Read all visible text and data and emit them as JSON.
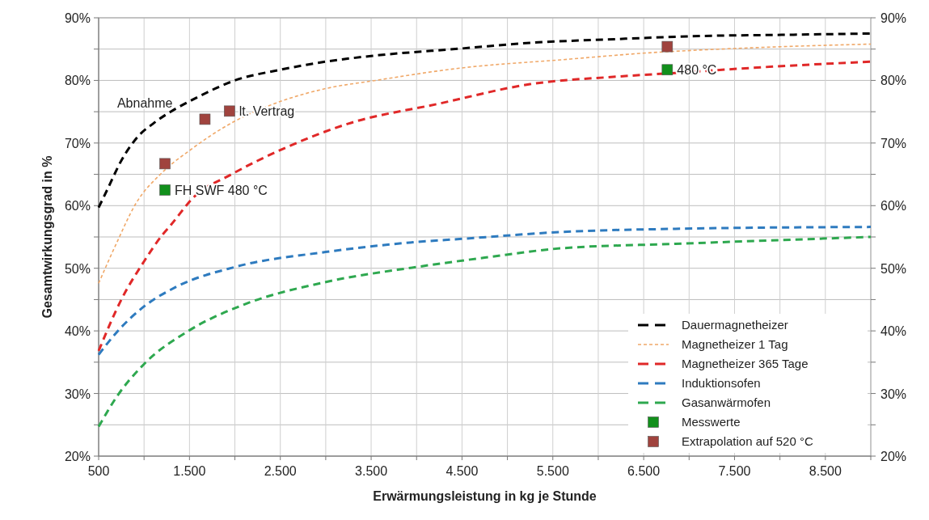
{
  "chart_data": {
    "type": "line",
    "xlabel": "Erwärmungsleistung in kg je Stunde",
    "ylabel": "Gesamtwirkungsgrad in %",
    "xlim": [
      500,
      9000
    ],
    "xticks": [
      500,
      {
        "value": 1000,
        "label": null
      },
      {
        "value": 1500,
        "label": "1.500"
      },
      {
        "value": 2000,
        "label": null
      },
      {
        "value": 2500,
        "label": "2.500"
      },
      {
        "value": 3000,
        "label": null
      },
      {
        "value": 3500,
        "label": "3.500"
      },
      {
        "value": 4000,
        "label": null
      },
      {
        "value": 4500,
        "label": "4.500"
      },
      {
        "value": 5000,
        "label": null
      },
      {
        "value": 5500,
        "label": "5.500"
      },
      {
        "value": 6000,
        "label": null
      },
      {
        "value": 6500,
        "label": "6.500"
      },
      {
        "value": 7000,
        "label": null
      },
      {
        "value": 7500,
        "label": "7.500"
      },
      {
        "value": 8000,
        "label": null
      },
      {
        "value": 8500,
        "label": "8.500"
      },
      {
        "value": 9000,
        "label": null
      }
    ],
    "ylim": [
      20,
      90
    ],
    "yticks": [
      {
        "value": 20,
        "label": "20%"
      },
      {
        "value": 25,
        "label": null
      },
      {
        "value": 30,
        "label": "30%"
      },
      {
        "value": 35,
        "label": null
      },
      {
        "value": 40,
        "label": "40%"
      },
      {
        "value": 45,
        "label": null
      },
      {
        "value": 50,
        "label": "50%"
      },
      {
        "value": 55,
        "label": null
      },
      {
        "value": 60,
        "label": "60%"
      },
      {
        "value": 65,
        "label": null
      },
      {
        "value": 70,
        "label": "70%"
      },
      {
        "value": 75,
        "label": null
      },
      {
        "value": 80,
        "label": "80%"
      },
      {
        "value": 85,
        "label": null
      },
      {
        "value": 90,
        "label": "90%"
      }
    ],
    "y2lim": [
      20,
      90
    ],
    "y2ticks": [
      {
        "value": 20,
        "label": "20%"
      },
      {
        "value": 25,
        "label": null
      },
      {
        "value": 30,
        "label": "30%"
      },
      {
        "value": 35,
        "label": null
      },
      {
        "value": 40,
        "label": "40%"
      },
      {
        "value": 45,
        "label": null
      },
      {
        "value": 50,
        "label": "50%"
      },
      {
        "value": 55,
        "label": null
      },
      {
        "value": 60,
        "label": "60%"
      },
      {
        "value": 65,
        "label": null
      },
      {
        "value": 70,
        "label": "70%"
      },
      {
        "value": 75,
        "label": null
      },
      {
        "value": 80,
        "label": "80%"
      },
      {
        "value": 85,
        "label": null
      },
      {
        "value": 90,
        "label": "90%"
      }
    ],
    "grid": true,
    "legend": "bottom right",
    "series": [
      {
        "name": "Dauermagnetheizer",
        "color": "#000000",
        "line_style": "dashed",
        "x": [
          500,
          600,
          750,
          950,
          1100,
          1600,
          2000,
          2500,
          3000,
          3500,
          4500,
          5250,
          6200,
          7150,
          8150,
          9000
        ],
        "values": [
          59.7,
          62.7,
          67.2,
          71.3,
          73.1,
          77.4,
          80.0,
          81.7,
          83.0,
          83.9,
          85.1,
          86.0,
          86.6,
          87.1,
          87.3,
          87.5
        ]
      },
      {
        "name": "Magnetheizer 1 Tag",
        "color": "#f0a868",
        "line_style": "dotted",
        "x": [
          500,
          700,
          900,
          1200,
          1500,
          2000,
          2400,
          3000,
          3550,
          4500,
          5600,
          6550,
          7500,
          9000
        ],
        "values": [
          47.6,
          54.1,
          60.1,
          65.3,
          68.8,
          73.5,
          76.1,
          78.7,
          80.0,
          82.0,
          83.3,
          84.4,
          85.1,
          85.8
        ]
      },
      {
        "name": "Magnetheizer 365 Tage",
        "color": "#e02828",
        "line_style": "dashed",
        "x": [
          500,
          750,
          1000,
          1200,
          1300,
          1550,
          1950,
          2550,
          3250,
          4250,
          5250,
          6200,
          6850,
          7800,
          9000
        ],
        "values": [
          36.8,
          45.0,
          51.1,
          55.3,
          57.0,
          61.4,
          64.9,
          69.2,
          73.1,
          76.3,
          79.4,
          80.6,
          81.2,
          82.1,
          83.0
        ]
      },
      {
        "name": "Induktionsofen",
        "color": "#2e7bbf",
        "line_style": "dashed",
        "x": [
          500,
          700,
          1000,
          1350,
          2000,
          3000,
          4000,
          4500,
          5600,
          6850,
          9000
        ],
        "values": [
          36.2,
          39.8,
          43.9,
          47.0,
          50.2,
          52.6,
          54.2,
          54.7,
          55.8,
          56.3,
          56.6
        ]
      },
      {
        "name": "Gasanwärmofen",
        "color": "#2ea84f",
        "line_style": "dashed",
        "x": [
          500,
          700,
          1000,
          1500,
          2100,
          3000,
          4000,
          4750,
          5600,
          6850,
          9000
        ],
        "values": [
          24.7,
          29.5,
          34.7,
          40.1,
          44.2,
          47.8,
          50.2,
          51.7,
          53.2,
          53.9,
          55.0
        ]
      },
      {
        "name": "Messwerte",
        "type": "scatter",
        "marker": "square",
        "color": "#12901c",
        "x": [
          1230,
          6760
        ],
        "values": [
          62.5,
          81.7
        ]
      },
      {
        "name": "Extrapolation auf 520 °C",
        "type": "scatter",
        "marker": "square",
        "color": "#a0433e",
        "x": [
          1230,
          1670,
          1940,
          6760
        ],
        "values": [
          66.7,
          73.8,
          75.1,
          85.4
        ]
      }
    ],
    "annotations": [
      {
        "text": "Abnahme",
        "x": 1670,
        "y": 73.8
      },
      {
        "text": "lt. Vertrag",
        "x": 1940,
        "y": 75.1
      },
      {
        "text": "FH SWF 480 °C",
        "x": 1230,
        "y": 62.5
      },
      {
        "text": "480 °C",
        "x": 6760,
        "y": 81.7
      }
    ]
  }
}
